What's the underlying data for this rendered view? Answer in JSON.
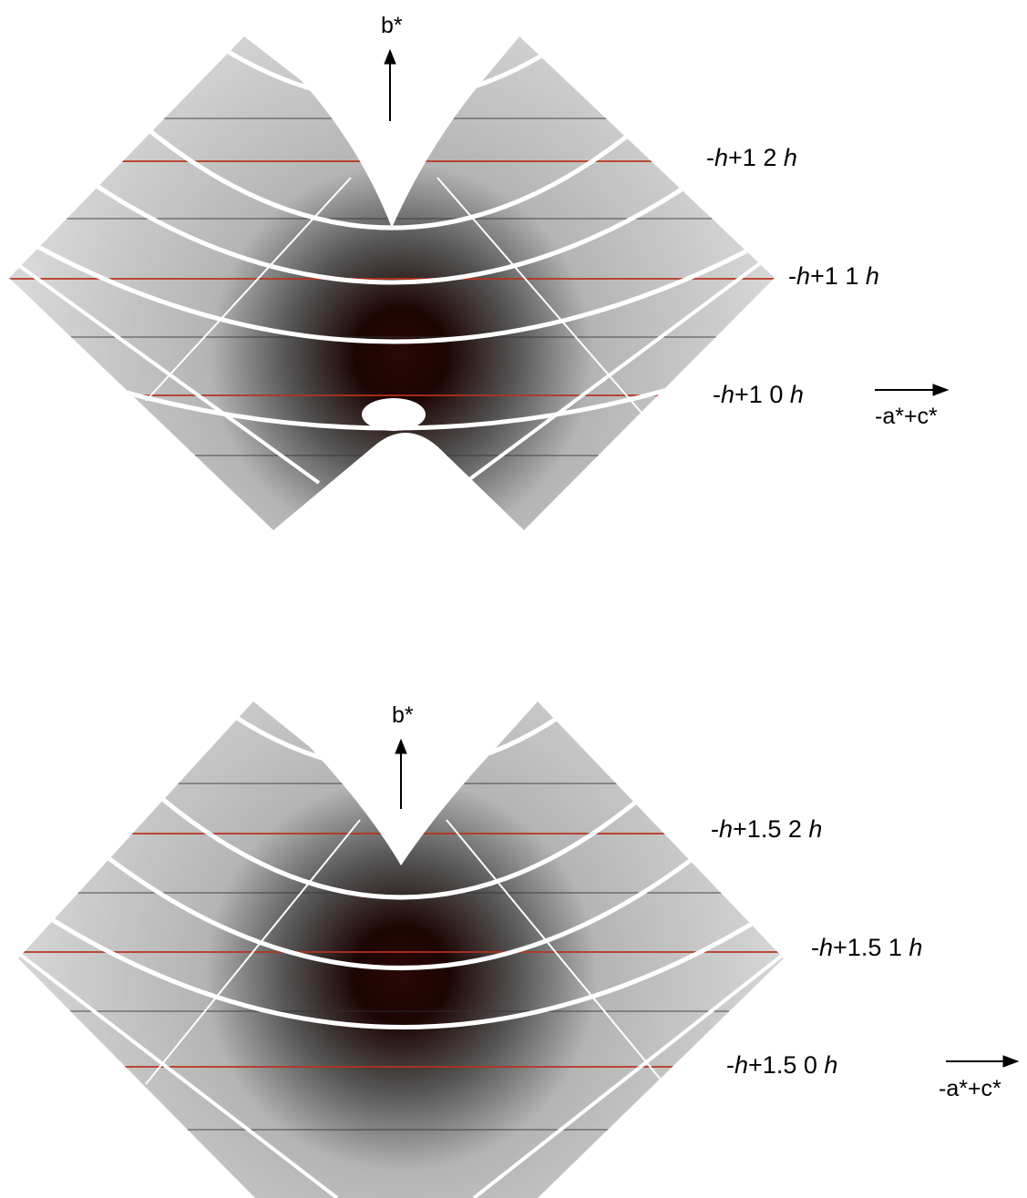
{
  "figure": {
    "panels": [
      {
        "up_axis": "b*",
        "right_axis": "-a*+c*",
        "layer_labels": [
          {
            "pre": "-",
            "h1": "h",
            "mid": "+1 2 ",
            "h2": "h"
          },
          {
            "pre": "-",
            "h1": "h",
            "mid": "+1 1 ",
            "h2": "h"
          },
          {
            "pre": "-",
            "h1": "h",
            "mid": "+1 0 ",
            "h2": "h"
          }
        ]
      },
      {
        "up_axis": "b*",
        "right_axis": "-a*+c*",
        "layer_labels": [
          {
            "pre": "-",
            "h1": "h",
            "mid": "+1.5 2 ",
            "h2": "h"
          },
          {
            "pre": "-",
            "h1": "h",
            "mid": "+1.5 1 ",
            "h2": "h"
          },
          {
            "pre": "-",
            "h1": "h",
            "mid": "+1.5 0 ",
            "h2": "h"
          }
        ]
      }
    ],
    "colors": {
      "background": "#ffffff",
      "map_light": "#cfcfcf",
      "map_dark": "#2a0806",
      "streak": "#b8321c",
      "line": "#ffffff"
    }
  }
}
